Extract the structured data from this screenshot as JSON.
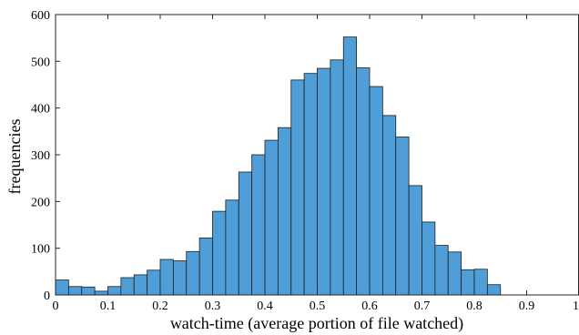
{
  "chart_data": {
    "type": "bar",
    "title": "",
    "xlabel": "watch-time (average portion of file watched)",
    "ylabel": "frequencies",
    "xlim": [
      0,
      1
    ],
    "ylim": [
      0,
      600
    ],
    "bin_width": 0.025,
    "x": [
      0.0125,
      0.0375,
      0.0625,
      0.0875,
      0.1125,
      0.1375,
      0.1625,
      0.1875,
      0.2125,
      0.2375,
      0.2625,
      0.2875,
      0.3125,
      0.3375,
      0.3625,
      0.3875,
      0.4125,
      0.4375,
      0.4625,
      0.4875,
      0.5125,
      0.5375,
      0.5625,
      0.5875,
      0.6125,
      0.6375,
      0.6625,
      0.6875,
      0.7125,
      0.7375,
      0.7625,
      0.7875,
      0.8125,
      0.8375,
      0.8625,
      0.8875,
      0.9125,
      0.9375,
      0.9625,
      0.9875
    ],
    "values": [
      32,
      18,
      17,
      8,
      18,
      37,
      43,
      53,
      76,
      73,
      93,
      122,
      179,
      203,
      263,
      300,
      331,
      358,
      460,
      474,
      485,
      503,
      552,
      486,
      446,
      384,
      338,
      234,
      156,
      106,
      92,
      54,
      55,
      22,
      0,
      0,
      0,
      0,
      0,
      0
    ],
    "xticks": [
      0,
      0.1,
      0.2,
      0.3,
      0.4,
      0.5,
      0.6,
      0.7,
      0.8,
      0.9,
      1
    ],
    "xtick_labels": [
      "0",
      "0.1",
      "0.2",
      "0.3",
      "0.4",
      "0.5",
      "0.6",
      "0.7",
      "0.8",
      "0.9",
      "1"
    ],
    "yticks": [
      0,
      100,
      200,
      300,
      400,
      500,
      600
    ],
    "ytick_labels": [
      "0",
      "100",
      "200",
      "300",
      "400",
      "500",
      "600"
    ],
    "bar_color": "#4f9ed8",
    "bar_edge_color": "#1f1f1f",
    "grid": false,
    "legend": "none"
  }
}
